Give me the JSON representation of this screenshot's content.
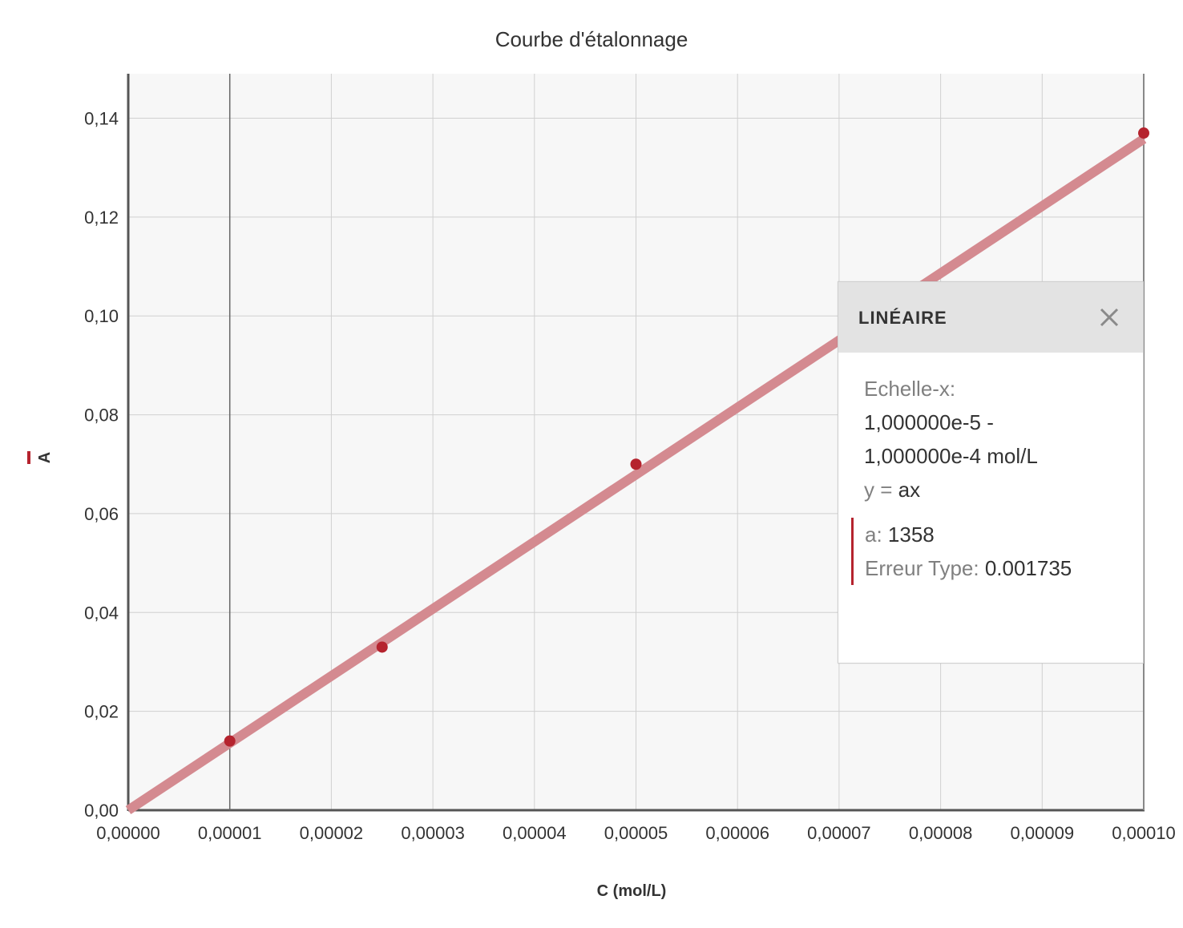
{
  "chart_data": {
    "type": "scatter",
    "title": "Courbe d'étalonnage",
    "xlabel": "C (mol/L)",
    "ylabel": "A",
    "xlim": [
      0,
      0.0001
    ],
    "ylim": [
      0,
      0.149
    ],
    "x_ticks": [
      "0,00000",
      "0,00001",
      "0,00002",
      "0,00003",
      "0,00004",
      "0,00005",
      "0,00006",
      "0,00007",
      "0,00008",
      "0,00009",
      "0,00010"
    ],
    "y_ticks": [
      "0,00",
      "0,02",
      "0,04",
      "0,06",
      "0,08",
      "0,10",
      "0,12",
      "0,14"
    ],
    "grid": true,
    "series": [
      {
        "points": [
          {
            "x": 1e-05,
            "y": 0.014
          },
          {
            "x": 2.5e-05,
            "y": 0.033
          },
          {
            "x": 5e-05,
            "y": 0.07
          },
          {
            "x": 0.0001,
            "y": 0.137
          }
        ],
        "color": "#b5232e"
      }
    ],
    "fit": {
      "model": "linear",
      "slope": 1358,
      "x_range": [
        1e-05,
        0.0001
      ],
      "color": "#d48a90"
    },
    "selection_marker_x": 1e-05
  },
  "fit_panel": {
    "title": "LINÉAIRE",
    "scale_label": "Echelle-x:",
    "range_line1": "1,000000e-5 -",
    "range_line2": "1,000000e-4 mol/L",
    "equation_prefix": "y = ",
    "equation_body": "ax",
    "param_a_label": "a: ",
    "param_a_value": "1358",
    "std_error_label": "Erreur Type: ",
    "std_error_value": "0.001735",
    "close_icon": "close-icon"
  },
  "colors": {
    "accent": "#b5232e",
    "fit_line": "#d48a90",
    "plot_background": "#f7f7f7",
    "grid": "#d0d0d0"
  }
}
